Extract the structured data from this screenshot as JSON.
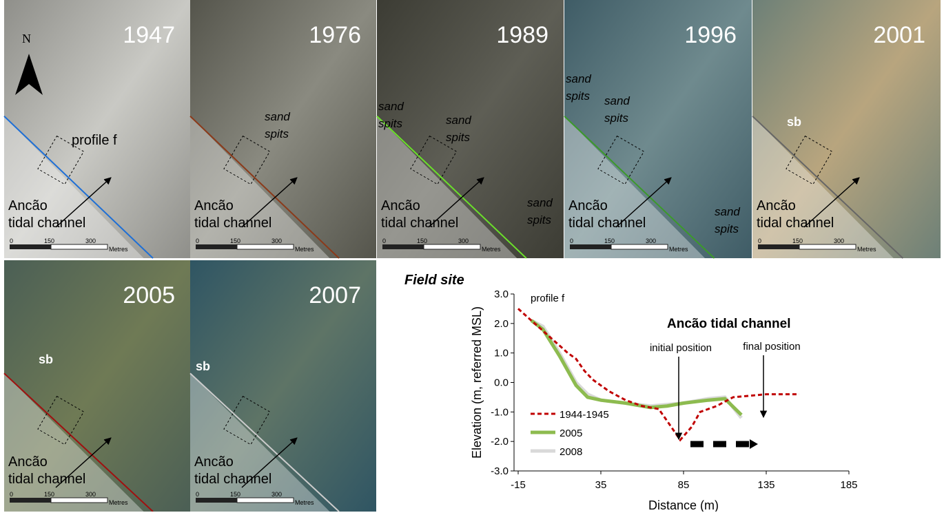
{
  "north": "N",
  "scale_bar": {
    "ticks": [
      "0",
      "150",
      "300"
    ],
    "unit": "Metres"
  },
  "panels": [
    {
      "year": "1947",
      "labels": [
        {
          "lines": [
            "profile f"
          ]
        },
        {
          "lines": [
            "Ancão",
            "tidal channel"
          ]
        }
      ]
    },
    {
      "year": "1976",
      "labels": [
        {
          "lines": [
            "sand",
            "spits"
          ]
        },
        {
          "lines": [
            "Ancão",
            "tidal channel"
          ]
        }
      ]
    },
    {
      "year": "1989",
      "labels": [
        {
          "lines": [
            "sand",
            "spits"
          ]
        },
        {
          "lines": [
            "sand",
            "spits"
          ]
        },
        {
          "lines": [
            "sand",
            "spits"
          ]
        },
        {
          "lines": [
            "Ancão",
            "tidal channel"
          ]
        }
      ]
    },
    {
      "year": "1996",
      "labels": [
        {
          "lines": [
            "sand",
            "spits"
          ]
        },
        {
          "lines": [
            "sand",
            "spits"
          ]
        },
        {
          "lines": [
            "sand",
            "spits"
          ]
        },
        {
          "lines": [
            "Ancão",
            "tidal channel"
          ]
        }
      ]
    },
    {
      "year": "2001",
      "labels": [
        {
          "lines": [
            "sb"
          ]
        },
        {
          "lines": [
            "Ancão",
            "tidal channel"
          ]
        }
      ]
    },
    {
      "year": "2005",
      "labels": [
        {
          "lines": [
            "sb"
          ]
        },
        {
          "lines": [
            "Ancão",
            "tidal channel"
          ]
        }
      ]
    },
    {
      "year": "2007",
      "labels": [
        {
          "lines": [
            "sb"
          ]
        },
        {
          "lines": [
            "Ancão",
            "tidal channel"
          ]
        }
      ]
    }
  ],
  "chart_data": {
    "type": "line",
    "title": "Field site",
    "xlabel": "Distance (m)",
    "ylabel": "Elevation (m, referred MSL)",
    "annotations": [
      "profile f",
      "Ancão tidal channel",
      "initial position",
      "final position"
    ],
    "xlim": [
      -15,
      185
    ],
    "xticks": [
      -15,
      35,
      85,
      135,
      185
    ],
    "ylim": [
      -3,
      3
    ],
    "yticks": [
      {
        "value": -3,
        "label": "-3.0"
      },
      {
        "value": -2,
        "label": "-2.0"
      },
      {
        "value": -1,
        "label": "-1.0"
      },
      {
        "value": 0,
        "label": "0.0"
      },
      {
        "value": 1,
        "label": "1.0"
      },
      {
        "value": 2,
        "label": "2.0"
      },
      {
        "value": 3,
        "label": "3.0"
      }
    ],
    "series": [
      {
        "name": "1944-1945",
        "color": "#c00000",
        "dashed": true,
        "x": [
          -15,
          -5,
          5,
          15,
          20,
          25,
          30,
          40,
          50,
          60,
          70,
          75,
          83,
          90,
          95,
          105,
          115,
          125,
          135,
          155
        ],
        "values": [
          2.5,
          2.0,
          1.5,
          1.0,
          0.8,
          0.4,
          0.1,
          -0.3,
          -0.6,
          -0.8,
          -0.9,
          -1.3,
          -1.95,
          -1.5,
          -1.0,
          -0.8,
          -0.5,
          -0.45,
          -0.4,
          -0.4
        ]
      },
      {
        "name": "2005",
        "color": "#8dbb4f",
        "dashed": false,
        "x": [
          -7,
          0,
          10,
          20,
          27,
          35,
          50,
          65,
          75,
          85,
          100,
          110,
          120
        ],
        "values": [
          2.1,
          1.8,
          0.9,
          -0.1,
          -0.5,
          -0.6,
          -0.7,
          -0.85,
          -0.8,
          -0.7,
          -0.6,
          -0.55,
          -1.1
        ]
      },
      {
        "name": "2008",
        "color": "#d9d9d9",
        "dashed": false,
        "x": [
          -7,
          0,
          10,
          20,
          27,
          35,
          50,
          65,
          75,
          85,
          100,
          110,
          120
        ],
        "values": [
          2.1,
          1.9,
          1.0,
          0.0,
          -0.4,
          -0.6,
          -0.7,
          -0.8,
          -0.75,
          -0.7,
          -0.55,
          -0.5,
          -1.2
        ]
      }
    ]
  }
}
